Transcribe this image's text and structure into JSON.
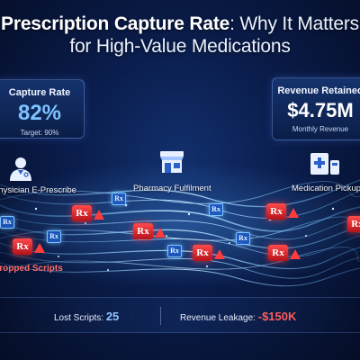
{
  "title": {
    "main": "Prescription Capture Rate",
    "rest_line1": ": Why It Matters",
    "line2": "for High-Value Medications"
  },
  "capture_card": {
    "label": "Capture Rate",
    "value": "82%",
    "target": "Target: 90%"
  },
  "revenue_card": {
    "label": "Revenue Retained",
    "value": "$4.75M",
    "sub": "Monthly Revenue"
  },
  "stages": [
    {
      "label": "Physician E-Prescribe",
      "icon": "physician-icon"
    },
    {
      "label": "Pharmacy Fulfilment",
      "icon": "pharmacy-icon"
    },
    {
      "label": "Medication Pickup",
      "icon": "medication-pickup-icon"
    }
  ],
  "flow_badge_text": "Rx",
  "dropped_label": "Dropped Scripts",
  "bottom": {
    "lost_label": "Lost Scripts:",
    "lost_value": "25",
    "leak_label": "Revenue Leakage:",
    "leak_value": "-$150K"
  },
  "colors": {
    "accent_blue": "#7ec3ff",
    "drop_red": "#e8323c",
    "warning_red": "#ff3b3b",
    "flow_cyan": "#5fb8ff"
  }
}
